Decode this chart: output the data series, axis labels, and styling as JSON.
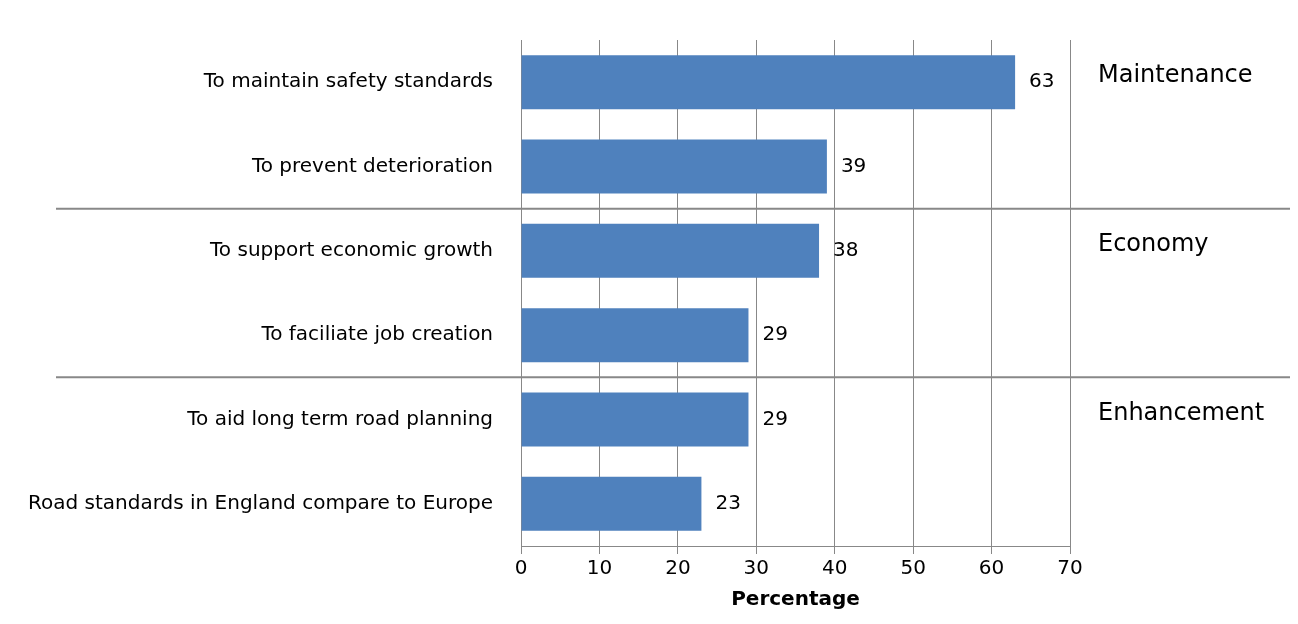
{
  "chart_data": {
    "type": "bar",
    "orientation": "horizontal",
    "xlabel": "Percentage",
    "categories": [
      "To maintain safety standards",
      "To prevent deterioration",
      "To support economic growth",
      "To faciliate job creation",
      "To aid long term road planning",
      "Road standards in England compare to Europe"
    ],
    "values": [
      63,
      39,
      38,
      29,
      29,
      23
    ],
    "color": "#4f81bd",
    "xlim": [
      0,
      70
    ],
    "xticks": [
      0,
      10,
      20,
      30,
      40,
      50,
      60,
      70
    ],
    "grid": "x",
    "data_labels": true,
    "legend": false,
    "annotations": [
      "Maintenance",
      "Economy",
      "Enhancement"
    ]
  }
}
